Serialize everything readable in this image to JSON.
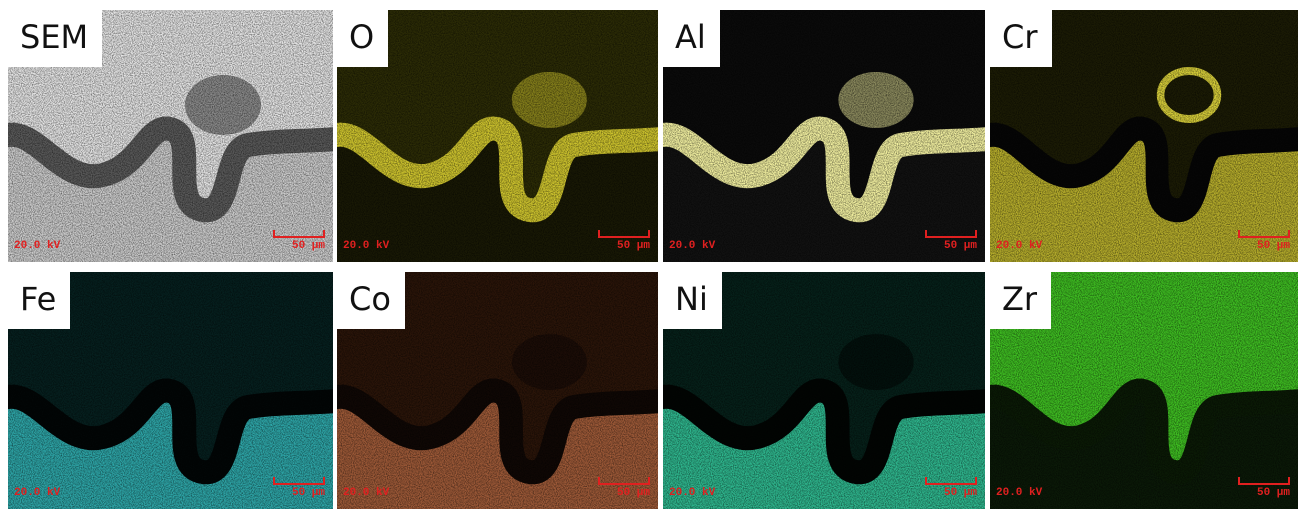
{
  "panels": [
    {
      "label": "SEM",
      "voltage": "20.0 kV",
      "scale": "50 μm"
    },
    {
      "label": "O",
      "voltage": "20.0 kV",
      "scale": "50 μm"
    },
    {
      "label": "Al",
      "voltage": "20.0 kV",
      "scale": "50 μm"
    },
    {
      "label": "Cr",
      "voltage": "20.0 kV",
      "scale": "50 μm"
    },
    {
      "label": "Fe",
      "voltage": "20.0 kV",
      "scale": "50 μm"
    },
    {
      "label": "Co",
      "voltage": "20.0 kV",
      "scale": "50 μm"
    },
    {
      "label": "Ni",
      "voltage": "20.0 kV",
      "scale": "50 μm"
    },
    {
      "label": "Zr",
      "voltage": "20.0 kV",
      "scale": "50 μm"
    }
  ]
}
